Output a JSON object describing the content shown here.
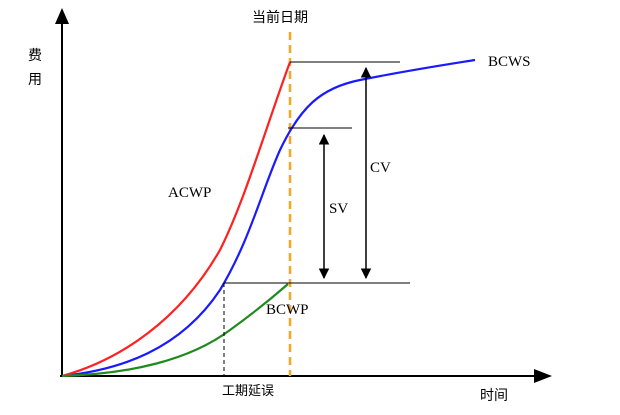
{
  "axes": {
    "y_label": "费用",
    "x_label": "时间"
  },
  "current_date_label": "当前日期",
  "schedule_delay_label": "工期延误",
  "curves": {
    "acwp": {
      "label": "ACWP",
      "color": "#ff2020"
    },
    "bcws": {
      "label": "BCWS",
      "color": "#1a1aff"
    },
    "bcwp": {
      "label": "BCWP",
      "color": "#1f8a1f"
    }
  },
  "variances": {
    "sv": "SV",
    "cv": "CV"
  },
  "current_date_line_color": "#f5a623"
}
